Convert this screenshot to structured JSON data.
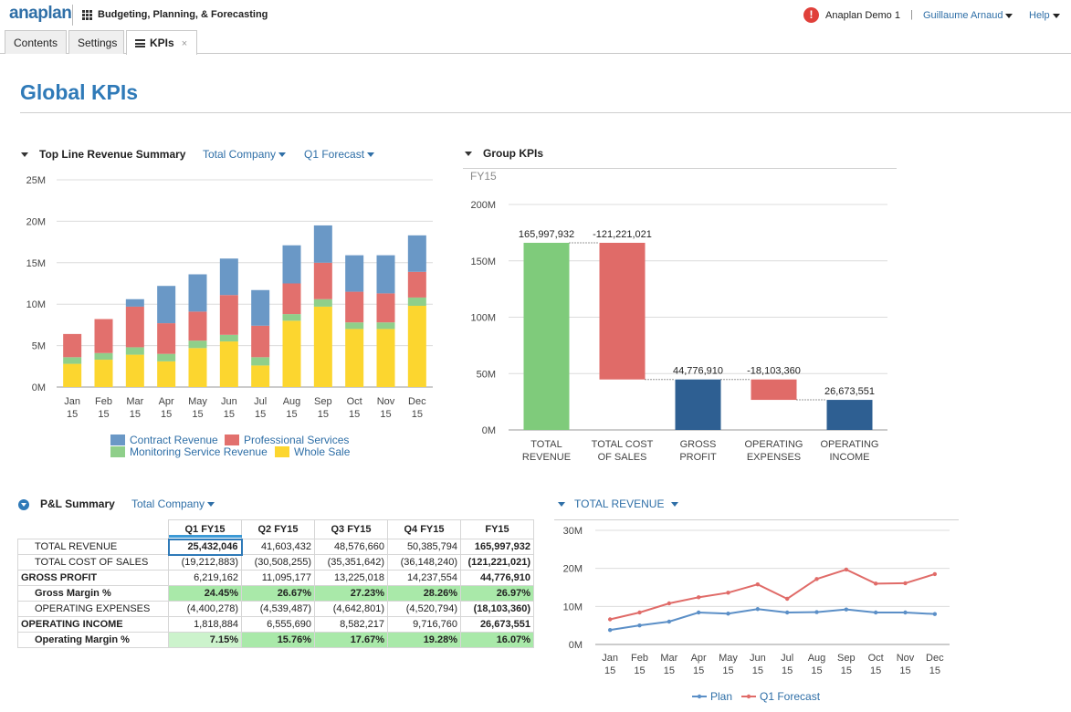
{
  "app": {
    "logo": "anaplan",
    "title": "Budgeting, Planning, & Forecasting",
    "workspace": "Anaplan Demo 1",
    "separator": "|",
    "user": "Guillaume Arnaud",
    "help": "Help"
  },
  "tabs": [
    {
      "label": "Contents"
    },
    {
      "label": "Settings"
    },
    {
      "label": "KPIs",
      "close": "×"
    }
  ],
  "page_title": "Global KPIs",
  "revenue_summary": {
    "title": "Top Line Revenue Summary",
    "filter_company": "Total Company",
    "filter_version": "Q1 Forecast"
  },
  "group_kpis": {
    "title": "Group KPIs",
    "period": "FY15"
  },
  "pl_summary": {
    "title": "P&L Summary",
    "filter_company": "Total Company",
    "columns": [
      "Q1 FY15",
      "Q2 FY15",
      "Q3 FY15",
      "Q4 FY15",
      "FY15"
    ],
    "rows": [
      {
        "label": "TOTAL REVENUE",
        "values": [
          "25,432,046",
          "41,603,432",
          "48,576,660",
          "50,385,794",
          "165,997,932"
        ]
      },
      {
        "label": "TOTAL COST OF SALES",
        "values": [
          "(19,212,883)",
          "(30,508,255)",
          "(35,351,642)",
          "(36,148,240)",
          "(121,221,021)"
        ]
      },
      {
        "label": "GROSS PROFIT",
        "values": [
          "6,219,162",
          "11,095,177",
          "13,225,018",
          "14,237,554",
          "44,776,910"
        ]
      },
      {
        "label": "Gross Margin %",
        "values": [
          "24.45%",
          "26.67%",
          "27.23%",
          "28.26%",
          "26.97%"
        ]
      },
      {
        "label": "OPERATING EXPENSES",
        "values": [
          "(4,400,278)",
          "(4,539,487)",
          "(4,642,801)",
          "(4,520,794)",
          "(18,103,360)"
        ]
      },
      {
        "label": "OPERATING INCOME",
        "values": [
          "1,818,884",
          "6,555,690",
          "8,582,217",
          "9,716,760",
          "26,673,551"
        ]
      },
      {
        "label": "Operating Margin %",
        "values": [
          "7.15%",
          "15.76%",
          "17.67%",
          "19.28%",
          "16.07%"
        ]
      }
    ]
  },
  "revenue_trend": {
    "filter_metric": "TOTAL REVENUE"
  },
  "colors": {
    "contract": "#6a98c6",
    "professional": "#e2706d",
    "monitoring": "#8fcf8a",
    "wholesale": "#fcd62f",
    "waterfall_pos": "#7fcb7b",
    "waterfall_neg": "#e06b68",
    "waterfall_total": "#2e5f92",
    "plan": "#5b8fc7",
    "forecast": "#e06b68",
    "accent": "#2f7ab8"
  },
  "chart_data": [
    {
      "type": "bar",
      "stacked": true,
      "title": "Top Line Revenue Summary",
      "categories": [
        "Jan 15",
        "Feb 15",
        "Mar 15",
        "Apr 15",
        "May 15",
        "Jun 15",
        "Jul 15",
        "Aug 15",
        "Sep 15",
        "Oct 15",
        "Nov 15",
        "Dec 15"
      ],
      "ylabels": [
        "0M",
        "5M",
        "10M",
        "15M",
        "20M",
        "25M"
      ],
      "ylim": [
        0,
        25000000
      ],
      "series": [
        {
          "name": "Whole Sale",
          "color_key": "wholesale",
          "values": [
            2800000,
            3300000,
            3900000,
            3100000,
            4700000,
            5500000,
            2600000,
            8000000,
            9700000,
            7000000,
            7000000,
            9800000
          ]
        },
        {
          "name": "Monitoring Service Revenue",
          "color_key": "monitoring",
          "values": [
            800000,
            800000,
            900000,
            900000,
            900000,
            800000,
            1000000,
            800000,
            900000,
            800000,
            800000,
            1000000
          ]
        },
        {
          "name": "Professional Services",
          "color_key": "professional",
          "values": [
            2800000,
            4100000,
            4900000,
            3700000,
            3500000,
            4800000,
            3800000,
            3700000,
            4400000,
            3700000,
            3500000,
            3100000
          ]
        },
        {
          "name": "Contract Revenue",
          "color_key": "contract",
          "values": [
            0,
            0,
            900000,
            4500000,
            4500000,
            4400000,
            4300000,
            4600000,
            4500000,
            4400000,
            4600000,
            4400000
          ]
        }
      ],
      "legend": [
        "Contract Revenue",
        "Professional Services",
        "Monitoring Service Revenue",
        "Whole Sale"
      ],
      "legend_position": "bottom"
    },
    {
      "type": "waterfall",
      "title": "Group KPIs",
      "subtitle": "FY15",
      "categories": [
        "TOTAL REVENUE",
        "TOTAL COST OF SALES",
        "GROSS PROFIT",
        "OPERATING EXPENSES",
        "OPERATING INCOME"
      ],
      "values": [
        165997932,
        -121221021,
        44776910,
        -18103360,
        26673551
      ],
      "labels": [
        "165,997,932",
        "-121,221,021",
        "44,776,910",
        "-18,103,360",
        "26,673,551"
      ],
      "kinds": [
        "total",
        "neg",
        "total",
        "neg",
        "total"
      ],
      "ylabels": [
        "0M",
        "50M",
        "100M",
        "150M",
        "200M"
      ],
      "ylim": [
        0,
        200000000
      ]
    },
    {
      "type": "line",
      "title": "TOTAL REVENUE",
      "categories": [
        "Jan 15",
        "Feb 15",
        "Mar 15",
        "Apr 15",
        "May 15",
        "Jun 15",
        "Jul 15",
        "Aug 15",
        "Sep 15",
        "Oct 15",
        "Nov 15",
        "Dec 15"
      ],
      "ylabels": [
        "0M",
        "10M",
        "20M",
        "30M"
      ],
      "ylim": [
        0,
        30000000
      ],
      "series": [
        {
          "name": "Plan",
          "color_key": "plan",
          "values": [
            3800000,
            5000000,
            6000000,
            8400000,
            8100000,
            9300000,
            8400000,
            8500000,
            9200000,
            8400000,
            8400000,
            8000000
          ]
        },
        {
          "name": "Q1 Forecast",
          "color_key": "forecast",
          "values": [
            6600000,
            8400000,
            10800000,
            12400000,
            13600000,
            15800000,
            12000000,
            17200000,
            19700000,
            16000000,
            16100000,
            18500000
          ]
        }
      ],
      "legend_position": "bottom"
    }
  ]
}
